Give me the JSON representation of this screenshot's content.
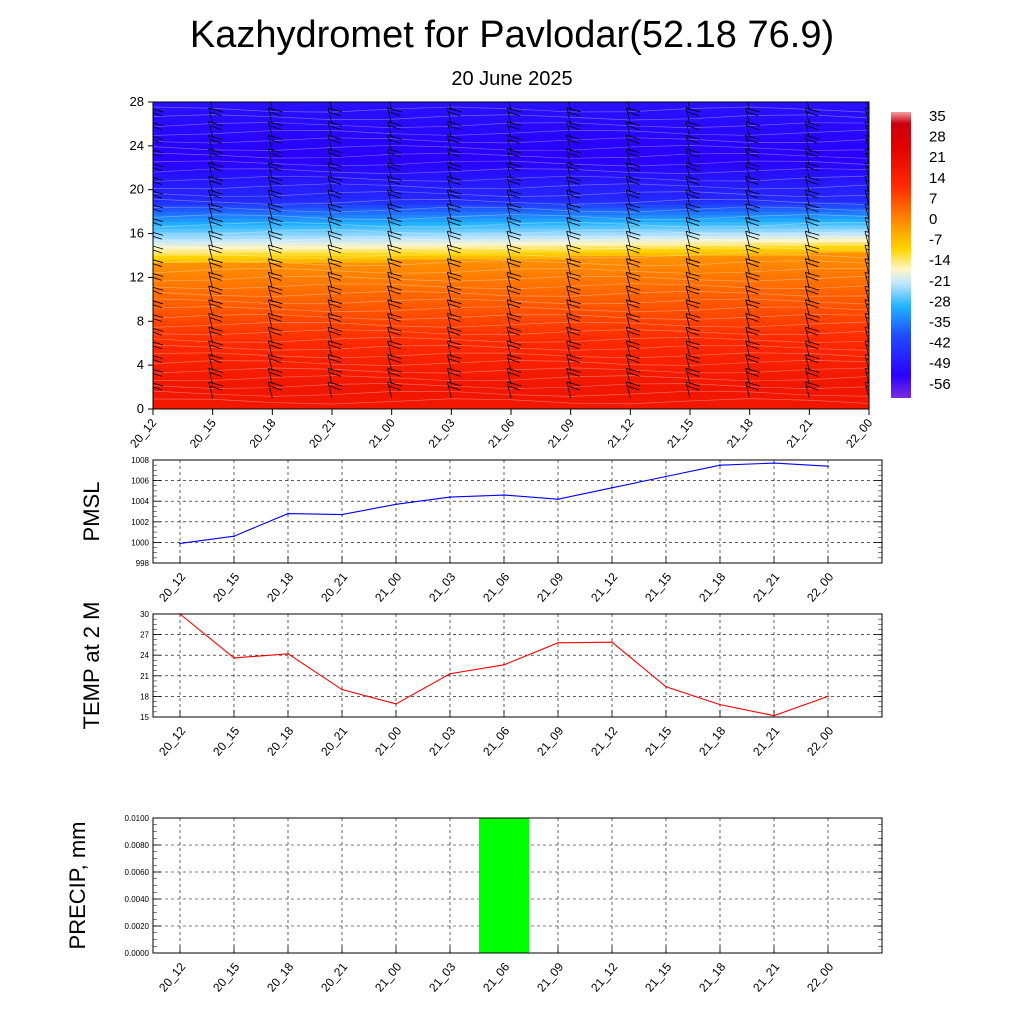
{
  "title": "Kazhydromet for Pavlodar(52.18 76.9)",
  "subtitle": "20 June 2025",
  "chart_data": [
    {
      "type": "heatmap",
      "description_role": "vertical cross-section of temperature with wind barbs",
      "x_categories": [
        "20_12",
        "20_15",
        "20_18",
        "20_21",
        "21_00",
        "21_03",
        "21_06",
        "21_09",
        "21_12",
        "21_15",
        "21_18",
        "21_21",
        "22_00"
      ],
      "y_ticks": [
        0,
        4,
        8,
        12,
        16,
        20,
        24,
        28
      ],
      "ylim": [
        0,
        28
      ],
      "colorbar_labels": [
        "35",
        "28",
        "21",
        "14",
        "7",
        "0",
        "-7",
        "-14",
        "-21",
        "-28",
        "-35",
        "-42",
        "-49",
        "-56"
      ],
      "colorbar_range": [
        -60,
        38
      ],
      "freezing_level_by_time": [
        13.2,
        13.3,
        13.4,
        13.4,
        13.5,
        13.6,
        13.7,
        13.8,
        13.9,
        14.0,
        14.1,
        14.2,
        14.3
      ]
    },
    {
      "type": "line",
      "ylabel": "PMSL",
      "categories": [
        "20_12",
        "20_15",
        "20_18",
        "20_21",
        "21_00",
        "21_03",
        "21_06",
        "21_09",
        "21_12",
        "21_15",
        "21_18",
        "21_21",
        "22_00"
      ],
      "values": [
        999.9,
        1000.6,
        1002.8,
        1002.7,
        1003.7,
        1004.4,
        1004.6,
        1004.2,
        1005.3,
        1006.4,
        1007.5,
        1007.7,
        1007.4
      ],
      "y_ticks": [
        998,
        1000,
        1002,
        1004,
        1006,
        1008
      ],
      "ylim": [
        998,
        1008
      ],
      "color": "#0000ff",
      "grid": true
    },
    {
      "type": "line",
      "ylabel": "TEMP at 2 M",
      "categories": [
        "20_12",
        "20_15",
        "20_18",
        "20_21",
        "21_00",
        "21_03",
        "21_06",
        "21_09",
        "21_12",
        "21_15",
        "21_18",
        "21_21",
        "22_00"
      ],
      "values": [
        30,
        23.6,
        24.2,
        19.0,
        16.9,
        21.3,
        22.6,
        25.8,
        25.9,
        19.4,
        16.8,
        15.2,
        18.0
      ],
      "y_ticks": [
        15,
        18,
        21,
        24,
        27,
        30
      ],
      "ylim": [
        15,
        30
      ],
      "color": "#ff0000",
      "grid": true
    },
    {
      "type": "bar",
      "ylabel": "PRECIP, mm",
      "categories": [
        "20_12",
        "20_15",
        "20_18",
        "20_21",
        "21_00",
        "21_03",
        "21_06",
        "21_09",
        "21_12",
        "21_15",
        "21_18",
        "21_21",
        "22_00"
      ],
      "values": [
        0,
        0,
        0,
        0,
        0,
        0,
        0.01,
        0,
        0,
        0,
        0,
        0,
        0
      ],
      "y_tick_labels": [
        "0.0000",
        "0.0020",
        "0.0040",
        "0.0060",
        "0.0080",
        "0.0100"
      ],
      "ylim": [
        0,
        0.01
      ],
      "color": "#00ff00",
      "grid": true
    }
  ]
}
